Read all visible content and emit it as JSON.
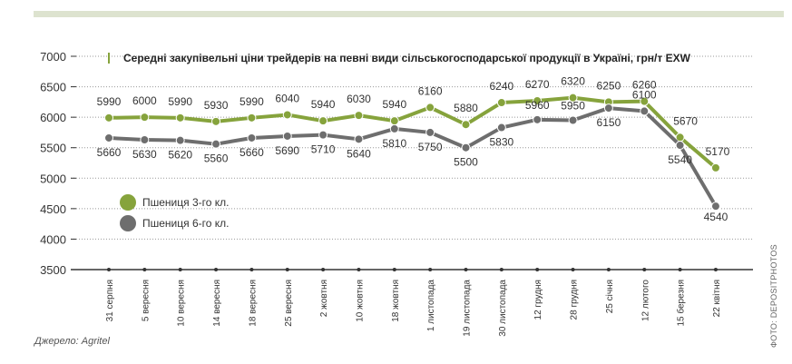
{
  "source": "Джерело: Agritel",
  "photo_credit": "ФОТО: DEPOSITPHOTOS",
  "colors": {
    "wheat3": "#86a33c",
    "wheat6": "#6e6e6e",
    "axis": "#333333",
    "grid": "#999999"
  },
  "chart_data": {
    "type": "line",
    "title": "Середні закупівельні ціни трейдерів на певні види сільськогосподарської продукції в Україні, грн/т EXW",
    "categories": [
      "31 серпня",
      "5 вересня",
      "10 вересня",
      "14 вересня",
      "18 вересня",
      "25 вересня",
      "2 жовтня",
      "10 жовтня",
      "18 жовтня",
      "1 листопада",
      "19 листопада",
      "30 листопада",
      "12 грудня",
      "28 грудня",
      "25 січня",
      "12 лютого",
      "15 березня",
      "22 квітня"
    ],
    "series": [
      {
        "name": "Пшениця 3-го кл.",
        "values": [
          5990,
          6000,
          5990,
          5930,
          5990,
          6040,
          5940,
          6030,
          5940,
          6160,
          5880,
          6240,
          6270,
          6320,
          6250,
          6260,
          5670,
          5170
        ]
      },
      {
        "name": "Пшениця 6-го кл.",
        "values": [
          5660,
          5630,
          5620,
          5560,
          5660,
          5690,
          5710,
          5640,
          5810,
          5750,
          5500,
          5830,
          5960,
          5950,
          6150,
          6100,
          5540,
          4540
        ]
      }
    ],
    "y_ticks": [
      3500,
      4000,
      4500,
      5000,
      5500,
      6000,
      6500,
      7000
    ],
    "ylim": [
      3500,
      7000
    ],
    "grid": true,
    "legend_position": "left-inside"
  }
}
